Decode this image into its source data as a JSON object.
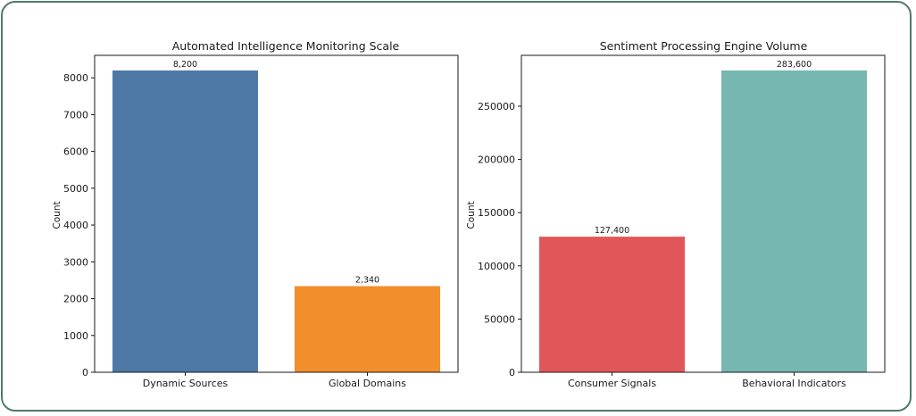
{
  "chart_data": [
    {
      "type": "bar",
      "title": "Automated Intelligence Monitoring Scale",
      "ylabel": "Count",
      "categories": [
        "Dynamic Sources",
        "Global Domains"
      ],
      "values": [
        8200,
        2340
      ],
      "data_labels": [
        "8,200",
        "2,340"
      ],
      "colors": [
        "#4e79a7",
        "#f28e2b"
      ],
      "ylim": [
        0,
        8610
      ],
      "yticks": [
        0,
        1000,
        2000,
        3000,
        4000,
        5000,
        6000,
        7000,
        8000
      ],
      "grid": false
    },
    {
      "type": "bar",
      "title": "Sentiment Processing Engine Volume",
      "ylabel": "Count",
      "categories": [
        "Consumer Signals",
        "Behavioral Indicators"
      ],
      "values": [
        127400,
        283600
      ],
      "data_labels": [
        "127,400",
        "283,600"
      ],
      "colors": [
        "#e15759",
        "#76b7b2"
      ],
      "ylim": [
        0,
        297780
      ],
      "yticks": [
        0,
        50000,
        100000,
        150000,
        200000,
        250000
      ],
      "grid": false
    }
  ]
}
